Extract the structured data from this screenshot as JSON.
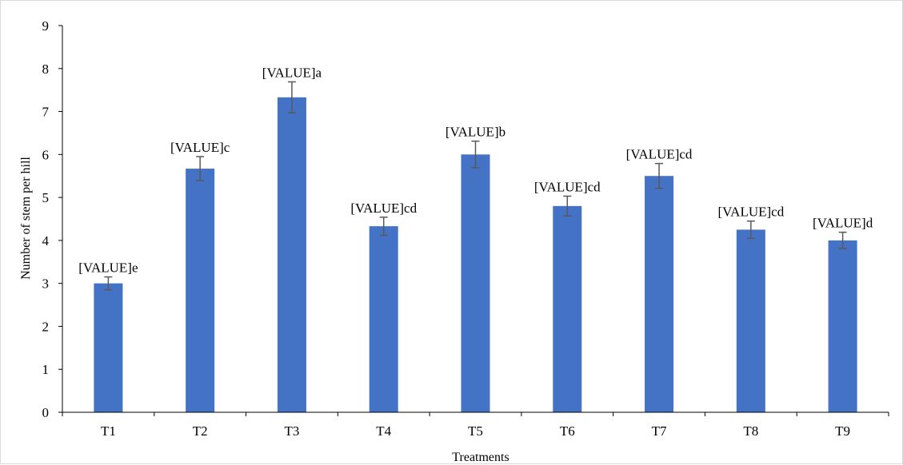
{
  "chart_data": {
    "type": "bar",
    "title": "",
    "xlabel": "Treatments",
    "ylabel": "Number of stem per hill",
    "ylim": [
      0,
      9
    ],
    "yticks": [
      0,
      1,
      2,
      3,
      4,
      5,
      6,
      7,
      8,
      9
    ],
    "categories": [
      "T1",
      "T2",
      "T3",
      "T4",
      "T5",
      "T6",
      "T7",
      "T8",
      "T9"
    ],
    "values": [
      3.0,
      5.67,
      7.33,
      4.33,
      6.0,
      4.8,
      5.5,
      4.25,
      4.0
    ],
    "errors": [
      0.15,
      0.28,
      0.36,
      0.21,
      0.31,
      0.23,
      0.29,
      0.2,
      0.19
    ],
    "data_labels": [
      "[VALUE]e",
      "[VALUE]c",
      "[VALUE]a",
      "[VALUE]cd",
      "[VALUE]b",
      "[VALUE]cd",
      "[VALUE]cd",
      "[VALUE]cd",
      "[VALUE]d"
    ],
    "bar_color": "#4472c4",
    "error_bar_color": "#595959",
    "grid": false,
    "legend": "none"
  }
}
